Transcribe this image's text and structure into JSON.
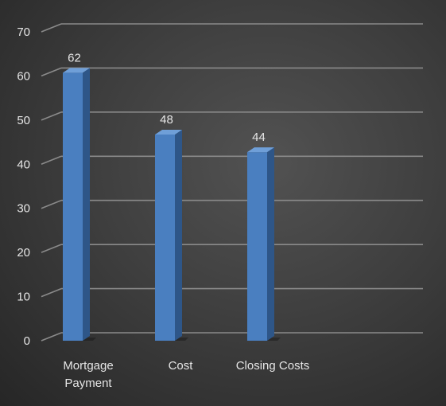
{
  "chart_data": {
    "type": "bar",
    "style": "3d-column",
    "categories": [
      "Mortgage Payment",
      "Cost",
      "Closing Costs"
    ],
    "category_lines": [
      [
        "Mortgage",
        "Payment"
      ],
      [
        "Cost"
      ],
      [
        "Closing Costs"
      ]
    ],
    "values": [
      62,
      48,
      44
    ],
    "data_labels": [
      "62",
      "48",
      "44"
    ],
    "title": "",
    "xlabel": "",
    "ylabel": "",
    "ylim": [
      0,
      70
    ],
    "yticks": [
      0,
      10,
      20,
      30,
      40,
      50,
      60,
      70
    ],
    "ytick_labels": [
      "0",
      "10",
      "20",
      "30",
      "40",
      "50",
      "60",
      "70"
    ],
    "grid": true,
    "legend": "none",
    "colors": {
      "bar_front": "#4a7fc0",
      "bar_side": "#2e5688",
      "bar_top": "#6f9fd8",
      "grid": "#8a8a8a",
      "text": "#e6e6e6",
      "background": "#3d3d3d"
    }
  }
}
